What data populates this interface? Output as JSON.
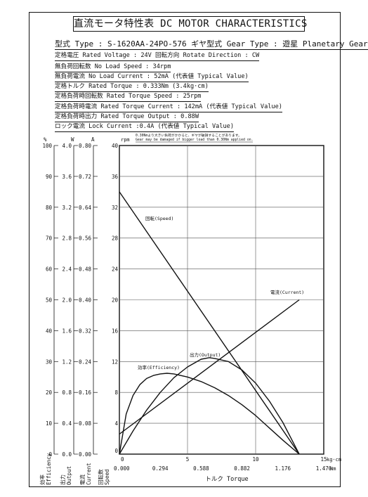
{
  "title": "直流モータ特性表 DC MOTOR CHARACTERISTICS",
  "specs": {
    "type": "型式 Type : S-1620AA-24PO-576  ギヤ型式 Gear Type : 遊星 Planetary Gear",
    "voltage": "定格電圧 Rated Voltage : 24V   回転方向 Rotate Direction : CW",
    "no_load_speed": "無負荷回転数 No Load Speed : 34rpm",
    "no_load_current": "無負荷電流 No Load Current : 52mA (代表値 Typical Value)",
    "rated_torque": "定格トルク Rated Torque : 0.333Nm (3.4kg·cm)",
    "rated_torque_speed": "定格負荷時回転数 Rated Torque Speed : 25rpm",
    "rated_torque_current": "定格負荷時電流 Rated Torque Current : 142mA (代表値 Typical Value)",
    "rated_torque_output": "定格負荷時出力 Rated Torque Output : 0.88W",
    "lock_current": "ロック電流 Lock Current :0.4A (代表値 Typical Value)"
  },
  "chart_data": {
    "type": "line",
    "notes": [
      "0.30Nmより大きい負荷がかかると、ギヤが破損することがあります。",
      "Gear may be damaged if bigger load than 0.30Nm applied on."
    ],
    "x_axis": {
      "kgcm": {
        "min": 0,
        "max": 15,
        "ticks": [
          "0",
          "5",
          "10",
          "15"
        ],
        "unit": "kg·cm"
      },
      "nm": {
        "min": 0,
        "max": 1.47,
        "ticks": [
          "0.000",
          "0.294",
          "0.588",
          "0.882",
          "1.176",
          "1.470"
        ],
        "unit": "Nm"
      },
      "label": "トルク Torque"
    },
    "axes": {
      "speed": {
        "unit": "rpm",
        "min": 0,
        "max": 40,
        "ticks": [
          "0",
          "4",
          "8",
          "12",
          "16",
          "20",
          "24",
          "28",
          "32",
          "36",
          "40"
        ],
        "label_jp": "回転数",
        "label_en": "Speed"
      },
      "current": {
        "unit": "A",
        "min": 0,
        "max": 0.8,
        "ticks": [
          "0.00",
          "0.08",
          "0.16",
          "0.24",
          "0.32",
          "0.40",
          "0.48",
          "0.56",
          "0.64",
          "0.72",
          "0.80"
        ],
        "label_jp": "電流",
        "label_en": "Current"
      },
      "output": {
        "unit": "W",
        "min": 0,
        "max": 4.0,
        "ticks": [
          "0.0",
          "0.4",
          "0.8",
          "1.2",
          "1.6",
          "2.0",
          "2.4",
          "2.8",
          "3.2",
          "3.6",
          "4.0"
        ],
        "label_jp": "出力",
        "label_en": "Output"
      },
      "efficiency": {
        "unit": "%",
        "min": 0,
        "max": 100,
        "ticks": [
          "0",
          "10",
          "20",
          "30",
          "40",
          "50",
          "60",
          "70",
          "80",
          "90",
          "100"
        ],
        "label_jp": "効率",
        "label_en": "Efficiency"
      }
    },
    "series": [
      {
        "name": "回転(Speed)",
        "axis": "speed",
        "x": [
          0,
          13.2
        ],
        "y": [
          34,
          0
        ]
      },
      {
        "name": "電流(Current)",
        "axis": "current",
        "x": [
          0,
          13.2
        ],
        "y": [
          0.052,
          0.4
        ]
      },
      {
        "name": "出力(Output)",
        "axis": "output",
        "x": [
          0,
          1,
          2,
          3,
          4,
          5,
          6,
          6.6,
          7,
          8,
          9,
          10,
          11,
          12,
          13.2
        ],
        "y": [
          0,
          0.3,
          0.57,
          0.8,
          0.99,
          1.13,
          1.23,
          1.25,
          1.24,
          1.2,
          1.09,
          0.92,
          0.69,
          0.41,
          0
        ]
      },
      {
        "name": "効率(Efficiency)",
        "axis": "efficiency",
        "x": [
          0,
          0.5,
          1,
          1.5,
          2,
          2.5,
          3,
          3.5,
          4,
          5,
          6,
          7,
          8,
          9,
          10,
          11,
          12,
          13.2
        ],
        "y": [
          0,
          13,
          19,
          22.5,
          24.5,
          25.5,
          26,
          26.2,
          26,
          25,
          23.5,
          21.5,
          19,
          16,
          12.5,
          8.5,
          4.5,
          0
        ]
      }
    ]
  }
}
